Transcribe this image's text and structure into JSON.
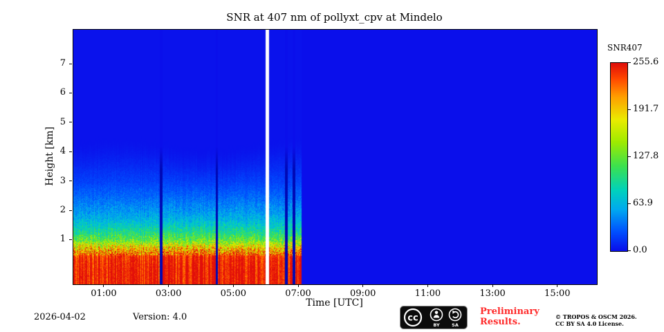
{
  "chart_data": {
    "type": "heatmap",
    "title": "SNR at 407 nm of pollyxt_cpv at Mindelo",
    "xlabel": "Time [UTC]",
    "ylabel": "Height [km]",
    "x_axis": {
      "range_hours": [
        0.04,
        16.2
      ],
      "ticks": [
        {
          "hour": 1,
          "label": "01:00"
        },
        {
          "hour": 3,
          "label": "03:00"
        },
        {
          "hour": 5,
          "label": "05:00"
        },
        {
          "hour": 7,
          "label": "07:00"
        },
        {
          "hour": 9,
          "label": "09:00"
        },
        {
          "hour": 11,
          "label": "11:00"
        },
        {
          "hour": 13,
          "label": "13:00"
        },
        {
          "hour": 15,
          "label": "15:00"
        }
      ]
    },
    "y_axis": {
      "range_km": [
        -0.5,
        8.18
      ],
      "ticks": [
        {
          "km": 1,
          "label": "1"
        },
        {
          "km": 2,
          "label": "2"
        },
        {
          "km": 3,
          "label": "3"
        },
        {
          "km": 4,
          "label": "4"
        },
        {
          "km": 5,
          "label": "5"
        },
        {
          "km": 6,
          "label": "6"
        },
        {
          "km": 7,
          "label": "7"
        }
      ]
    },
    "colorbar": {
      "label": "SNR407",
      "min": 0.0,
      "max": 255.6,
      "ticks": [
        {
          "value": 255.6,
          "label": "255.6"
        },
        {
          "value": 191.7,
          "label": "191.7"
        },
        {
          "value": 127.8,
          "label": "127.8"
        },
        {
          "value": 63.9,
          "label": "63.9"
        },
        {
          "value": 0.0,
          "label": "0.0"
        }
      ]
    },
    "colormap_stops": [
      [
        0.0,
        10,
        15,
        235
      ],
      [
        0.1,
        0,
        80,
        255
      ],
      [
        0.22,
        0,
        170,
        240
      ],
      [
        0.32,
        0,
        210,
        190
      ],
      [
        0.45,
        60,
        225,
        80
      ],
      [
        0.58,
        160,
        235,
        0
      ],
      [
        0.7,
        235,
        235,
        0
      ],
      [
        0.82,
        255,
        160,
        0
      ],
      [
        0.92,
        255,
        70,
        0
      ],
      [
        1.0,
        225,
        15,
        10
      ]
    ],
    "profile_samples": [
      {
        "h": 0.05,
        "snr": 253
      },
      {
        "h": 0.45,
        "snr": 245
      },
      {
        "h": 0.55,
        "snr": 225
      },
      {
        "h": 0.7,
        "snr": 195
      },
      {
        "h": 0.85,
        "snr": 165
      },
      {
        "h": 1.0,
        "snr": 130
      },
      {
        "h": 1.25,
        "snr": 100
      },
      {
        "h": 1.5,
        "snr": 78
      },
      {
        "h": 1.75,
        "snr": 62
      },
      {
        "h": 2.0,
        "snr": 50
      },
      {
        "h": 2.5,
        "snr": 34
      },
      {
        "h": 3.0,
        "snr": 21
      },
      {
        "h": 3.5,
        "snr": 13
      },
      {
        "h": 4.0,
        "snr": 7
      },
      {
        "h": 4.5,
        "snr": 3
      },
      {
        "h": 5.0,
        "snr": 1.5
      },
      {
        "h": 8.2,
        "snr": 1
      }
    ],
    "signal": {
      "data_end_hour": 7.08,
      "white_gap_hours": [
        5.98,
        6.09
      ],
      "dropout_hours": [
        [
          2.7,
          2.79
        ],
        [
          4.43,
          4.5
        ],
        [
          6.57,
          6.65
        ],
        [
          6.81,
          6.89
        ]
      ],
      "aerosol_top_km": 3.9,
      "background_color": "#0a0feb",
      "dropout_color": "#0008b4",
      "gap_color": "#ffffff",
      "noise_seed": 42,
      "column_noise": 0.12,
      "pixel_noise": 0.32
    },
    "description": "Lidar SNR quicklook: strong near-surface signal (red, SNR ~250) below ~0.5 km decaying through yellow/green/cyan to background blue (~0) near 4 km; measurement runs from 00:00 to about 07:05 UTC with a white data gap near 06:00 and a few dark dropout profiles (~02:45, ~04:28, ~06:35, ~06:50); no data (uniform blue) after ~07:05 until 16:12."
  },
  "footer": {
    "date": "2026-04-02",
    "version": "Version: 4.0",
    "preliminary_line1": "Preliminary",
    "preliminary_line2": "Results.",
    "preliminary_color": "#ff2a2a",
    "copyright_line1": "© TROPOS & OSCM 2026.",
    "copyright_line2": "CC BY SA 4.0 License.",
    "cc_badge": {
      "cc_text": "cc",
      "label_by": "BY",
      "label_sa": "SA"
    }
  }
}
